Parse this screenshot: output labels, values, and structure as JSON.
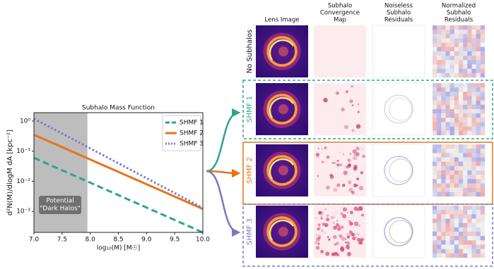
{
  "chart_data": {
    "type": "line",
    "title": "Subhalo Mass Function",
    "x_label": "log₁₀(M) [M☉]",
    "y_label": "d²N(M)/dlogM dA  [kpc⁻²]",
    "x": [
      7.0,
      10.0
    ],
    "series": [
      {
        "name": "SHMF 1",
        "color": "#2ca58d",
        "dash": "dashed",
        "values": [
          0.06,
          0.0002
        ]
      },
      {
        "name": "SHMF 2",
        "color": "#e8731a",
        "dash": "solid",
        "values": [
          0.35,
          0.0012
        ]
      },
      {
        "name": "SHMF 3",
        "color": "#7b76c4",
        "dash": "dotted",
        "values": [
          1.2,
          0.0013
        ]
      }
    ],
    "xlim": [
      7.0,
      10.0
    ],
    "xticks": [
      {
        "value": 7,
        "label": "7.0"
      },
      7.5,
      {
        "value": 8,
        "label": "8.0"
      },
      8.5,
      {
        "value": 9,
        "label": "9.0"
      },
      9.5,
      {
        "value": 10,
        "label": "10.0"
      }
    ],
    "ylim": [
      0.0002,
      1.9
    ],
    "log_y": true,
    "yticks": [
      {
        "value": 0.001,
        "label": "10⁻³"
      },
      {
        "value": 0.01,
        "label": "10⁻²"
      },
      {
        "value": 0.1,
        "label": "10⁻¹"
      },
      {
        "value": 1,
        "label": "10⁰"
      }
    ],
    "shaded_region": [
      7.0,
      7.95
    ],
    "annotation": [
      "Potential",
      "\"Dark Halos\""
    ],
    "legend": "upper right"
  },
  "grid": {
    "column_headers": [
      [
        "Lens Image"
      ],
      [
        "Subhalo",
        "Convergence",
        "Map"
      ],
      [
        "Noiseless",
        "Subhalo",
        "Residuals"
      ],
      [
        "Normalized",
        "Subhalo",
        "Residuals"
      ]
    ],
    "rows": [
      {
        "label": "No Subhalos",
        "color": "#111111"
      },
      {
        "label": "SHMF 1",
        "color": "#2ca58d"
      },
      {
        "label": "SHMF 2",
        "color": "#e8731a"
      },
      {
        "label": "SHMF 3",
        "color": "#7b76c4"
      }
    ]
  }
}
